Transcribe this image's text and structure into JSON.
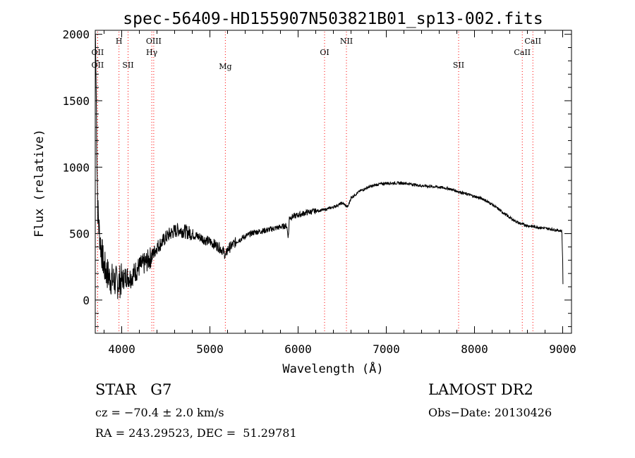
{
  "chart_data": {
    "type": "line",
    "title": "spec-56409-HD155907N503821B01_sp13-002.fits",
    "xlabel": "Wavelength (Å)",
    "ylabel": "Flux (relative)",
    "xlim": [
      3700,
      9100
    ],
    "ylim": [
      -250,
      2030
    ],
    "xticks": [
      4000,
      5000,
      6000,
      7000,
      8000,
      9000
    ],
    "yticks": [
      0,
      500,
      1000,
      1500,
      2000
    ],
    "x_minor_step": 200,
    "y_minor_step": 100,
    "line_color": "#000000",
    "marker_color": "#ff0000",
    "continuum": [
      [
        3702,
        2000
      ],
      [
        3712,
        1500
      ],
      [
        3720,
        1050
      ],
      [
        3728,
        700
      ],
      [
        3740,
        560
      ],
      [
        3760,
        420
      ],
      [
        3780,
        330
      ],
      [
        3800,
        250
      ],
      [
        3830,
        210
      ],
      [
        3860,
        170
      ],
      [
        3900,
        150
      ],
      [
        3950,
        130
      ],
      [
        4000,
        150
      ],
      [
        4050,
        180
      ],
      [
        4100,
        170
      ],
      [
        4150,
        210
      ],
      [
        4200,
        250
      ],
      [
        4250,
        270
      ],
      [
        4300,
        300
      ],
      [
        4350,
        340
      ],
      [
        4400,
        400
      ],
      [
        4450,
        430
      ],
      [
        4500,
        470
      ],
      [
        4550,
        500
      ],
      [
        4600,
        520
      ],
      [
        4650,
        530
      ],
      [
        4700,
        520
      ],
      [
        4750,
        510
      ],
      [
        4800,
        500
      ],
      [
        4850,
        480
      ],
      [
        4900,
        470
      ],
      [
        4950,
        450
      ],
      [
        5000,
        440
      ],
      [
        5050,
        420
      ],
      [
        5100,
        400
      ],
      [
        5150,
        370
      ],
      [
        5180,
        330
      ],
      [
        5200,
        380
      ],
      [
        5250,
        410
      ],
      [
        5300,
        440
      ],
      [
        5400,
        480
      ],
      [
        5500,
        510
      ],
      [
        5600,
        520
      ],
      [
        5700,
        535
      ],
      [
        5800,
        550
      ],
      [
        5870,
        560
      ],
      [
        5890,
        470
      ],
      [
        5900,
        620
      ],
      [
        6000,
        640
      ],
      [
        6100,
        660
      ],
      [
        6200,
        670
      ],
      [
        6300,
        680
      ],
      [
        6400,
        700
      ],
      [
        6500,
        730
      ],
      [
        6563,
        700
      ],
      [
        6600,
        770
      ],
      [
        6700,
        820
      ],
      [
        6800,
        850
      ],
      [
        6900,
        870
      ],
      [
        7000,
        880
      ],
      [
        7100,
        880
      ],
      [
        7200,
        880
      ],
      [
        7300,
        870
      ],
      [
        7400,
        860
      ],
      [
        7500,
        855
      ],
      [
        7600,
        850
      ],
      [
        7700,
        840
      ],
      [
        7800,
        820
      ],
      [
        7900,
        800
      ],
      [
        8000,
        780
      ],
      [
        8100,
        760
      ],
      [
        8200,
        720
      ],
      [
        8300,
        670
      ],
      [
        8400,
        620
      ],
      [
        8500,
        580
      ],
      [
        8600,
        560
      ],
      [
        8700,
        550
      ],
      [
        8800,
        540
      ],
      [
        8900,
        530
      ],
      [
        8990,
        520
      ],
      [
        9000,
        300
      ],
      [
        9005,
        0
      ]
    ],
    "lines": [
      {
        "label": "OII",
        "x": 3727
      },
      {
        "label": "OII",
        "x": 3727
      },
      {
        "label": "H",
        "x": 3969
      },
      {
        "label": "SII",
        "x": 4072
      },
      {
        "label": "OIII",
        "x": 4363
      },
      {
        "label": "Hγ",
        "x": 4341
      },
      {
        "label": "Mg",
        "x": 5175
      },
      {
        "label": "OI",
        "x": 6300
      },
      {
        "label": "NII",
        "x": 6548
      },
      {
        "label": "SII",
        "x": 7820
      },
      {
        "label": "CaII",
        "x": 8542
      },
      {
        "label": "CaII",
        "x": 8662
      }
    ]
  },
  "info": {
    "object": "STAR   G7",
    "survey": "LAMOST DR2",
    "cz": "cz = −70.4 ± 2.0 km/s",
    "obs_date": "Obs−Date: 20130426",
    "coords": "RA = 243.29523, DEC =  51.29781"
  }
}
